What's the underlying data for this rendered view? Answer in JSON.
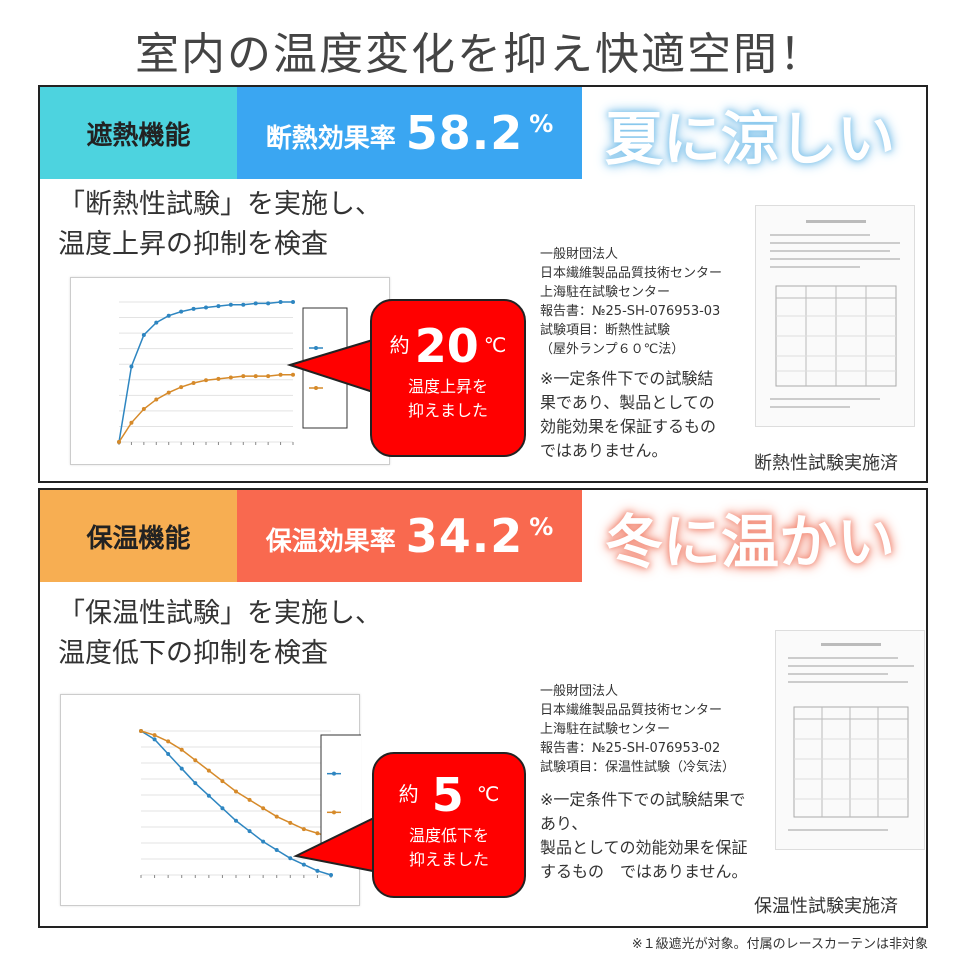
{
  "page_title": "室内の温度変化を抑え快適空間！",
  "colors": {
    "cyan": "#4dd3df",
    "blue": "#3aa6f2",
    "orange_tag": "#f7ae52",
    "coral": "#f9694f",
    "red_bubble": "#ff0000",
    "summer_glow": "#9fd0ef",
    "winter_glow": "#f5a08f",
    "series_blue": "#2e86c1",
    "series_orange": "#d68a2a"
  },
  "heat": {
    "tag": "遮熱機能",
    "rate_label": "断熱効果率",
    "rate_value": "58.2",
    "rate_unit": "%",
    "season": "夏に涼しい",
    "desc_line1": "「断熱性試験」を実施し、",
    "desc_line2": "温度上昇の抑制を検査",
    "bubble_prefix": "約",
    "bubble_value": "20",
    "bubble_unit": "℃",
    "bubble_line1": "温度上昇を",
    "bubble_line2": "抑えました",
    "org_lines": [
      "一般財団法人",
      "日本繊維製品品質技術センター",
      "上海駐在試験センター",
      "報告書：№25-SH-076953-03",
      "試験項目：断熱性試験",
      "（屋外ランプ６０℃法）"
    ],
    "note_lines": [
      "※一定条件下での試験結",
      "果であり、製品としての",
      "効能効果を保証するもの",
      "ではありません。"
    ],
    "done": "断熱性試験実施済"
  },
  "warm": {
    "tag": "保温機能",
    "rate_label": "保温効果率",
    "rate_value": "34.2",
    "rate_unit": "%",
    "season": "冬に温かい",
    "desc_line1": "「保温性試験」を実施し、",
    "desc_line2": "温度低下の抑制を検査",
    "bubble_prefix": "約",
    "bubble_value": "5",
    "bubble_unit": "℃",
    "bubble_line1": "温度低下を",
    "bubble_line2": "抑えました",
    "org_lines": [
      "一般財団法人",
      "日本繊維製品品質技術センター",
      "上海駐在試験センター",
      "報告書：№25-SH-076953-02",
      "試験項目：保温性試験（冷気法）"
    ],
    "note_lines": [
      "※一定条件下での試験結果で",
      "あり、",
      "製品としての効能効果を保証",
      "するもの　ではありません。"
    ],
    "done": "保温性試験実施済"
  },
  "footnote": "※１級遮光が対象。付属のレースカーテンは非対象",
  "chart_data": [
    {
      "type": "line",
      "series": [
        {
          "values": [
            0,
            55,
            78,
            87,
            92,
            95,
            97,
            98,
            99,
            100,
            100,
            101,
            101,
            102,
            102
          ]
        },
        {
          "values": [
            0,
            14,
            24,
            31,
            36,
            40,
            43,
            45,
            46,
            47,
            48,
            48,
            48,
            49,
            49
          ]
        }
      ]
    },
    {
      "type": "line",
      "series": [
        {
          "values": [
            0,
            -4,
            -11,
            -18,
            -25,
            -31,
            -37,
            -43,
            -48,
            -53,
            -57,
            -61,
            -64,
            -67,
            -69
          ]
        },
        {
          "values": [
            0,
            -2,
            -5,
            -9,
            -14,
            -19,
            -24,
            -29,
            -33,
            -37,
            -41,
            -44,
            -47,
            -49,
            -51
          ]
        }
      ]
    }
  ]
}
